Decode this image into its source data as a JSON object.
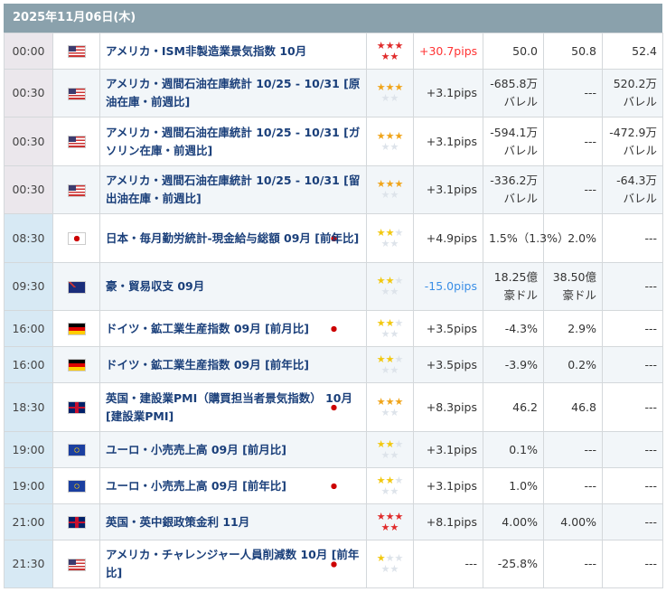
{
  "date_header": "2025年11月06日(木)",
  "colors": {
    "header_bg": "#8aa1ac",
    "title": "#1a3f7a",
    "pips_up": "#ff3333",
    "pips_down": "#3a8ee6",
    "star_high": "#e02b2b",
    "star_mid": "#f0a419",
    "star_low": "#f2c80f"
  },
  "rows": [
    {
      "time": "00:00",
      "country": "us",
      "title": "アメリカ・ISM非製造業景気指数 10月",
      "stars": 5,
      "star_color": "red",
      "pips": "+30.7pips",
      "pips_dir": "up",
      "prev": "50.0",
      "forecast": "50.8",
      "actual": "52.4"
    },
    {
      "time": "00:30",
      "country": "us",
      "title": "アメリカ・週間石油在庫統計 10/25 - 10/31 [原油在庫・前週比]",
      "stars": 3,
      "star_color": "orange",
      "pips": "+3.1pips",
      "prev": "-685.8万バレル",
      "forecast": "---",
      "actual": "520.2万バレル"
    },
    {
      "time": "00:30",
      "country": "us",
      "title": "アメリカ・週間石油在庫統計 10/25 - 10/31 [ガソリン在庫・前週比]",
      "stars": 3,
      "star_color": "orange",
      "pips": "+3.1pips",
      "prev": "-594.1万バレル",
      "forecast": "---",
      "actual": "-472.9万バレル"
    },
    {
      "time": "00:30",
      "country": "us",
      "title": "アメリカ・週間石油在庫統計 10/25 - 10/31 [留出油在庫・前週比]",
      "stars": 3,
      "star_color": "orange",
      "pips": "+3.1pips",
      "prev": "-336.2万バレル",
      "forecast": "---",
      "actual": "-64.3万バレル"
    },
    {
      "time": "08:30",
      "country": "jp",
      "title": "日本・毎月勤労統計-現金給与総額 09月 [前年比]",
      "stars": 2,
      "star_color": "yellow",
      "pips": "+4.9pips",
      "prev": "1.5%（1.3%）",
      "forecast": "2.0%",
      "actual": "---"
    },
    {
      "time": "09:30",
      "country": "au",
      "title": "豪・貿易収支 09月",
      "stars": 2,
      "star_color": "yellow",
      "pips": "-15.0pips",
      "pips_dir": "down",
      "prev": "18.25億豪ドル",
      "forecast": "38.50億豪ドル",
      "actual": "---"
    },
    {
      "time": "16:00",
      "country": "de",
      "title": "ドイツ・鉱工業生産指数 09月 [前月比]",
      "stars": 2,
      "star_color": "yellow",
      "pips": "+3.5pips",
      "prev": "-4.3%",
      "forecast": "2.9%",
      "actual": "---"
    },
    {
      "time": "16:00",
      "country": "de",
      "title": "ドイツ・鉱工業生産指数 09月 [前年比]",
      "stars": 2,
      "star_color": "yellow",
      "pips": "+3.5pips",
      "prev": "-3.9%",
      "forecast": "0.2%",
      "actual": "---"
    },
    {
      "time": "18:30",
      "country": "gb",
      "title": "英国・建設業PMI（購買担当者景気指数） 10月 [建設業PMI]",
      "stars": 3,
      "star_color": "orange",
      "pips": "+8.3pips",
      "prev": "46.2",
      "forecast": "46.8",
      "actual": "---"
    },
    {
      "time": "19:00",
      "country": "eu",
      "title": "ユーロ・小売売上高 09月 [前月比]",
      "stars": 2,
      "star_color": "yellow",
      "pips": "+3.1pips",
      "prev": "0.1%",
      "forecast": "---",
      "actual": "---"
    },
    {
      "time": "19:00",
      "country": "eu",
      "title": "ユーロ・小売売上高 09月 [前年比]",
      "stars": 2,
      "star_color": "yellow",
      "pips": "+3.1pips",
      "prev": "1.0%",
      "forecast": "---",
      "actual": "---"
    },
    {
      "time": "21:00",
      "country": "gb",
      "title": "英国・英中銀政策金利 11月",
      "stars": 5,
      "star_color": "red",
      "pips": "+8.1pips",
      "prev": "4.00%",
      "forecast": "4.00%",
      "actual": "---"
    },
    {
      "time": "21:30",
      "country": "us",
      "title": "アメリカ・チャレンジャー人員削減数 10月 [前年比]",
      "stars": 1,
      "star_color": "yellow",
      "pips": "---",
      "prev": "-25.8%",
      "forecast": "---",
      "actual": "---"
    }
  ]
}
